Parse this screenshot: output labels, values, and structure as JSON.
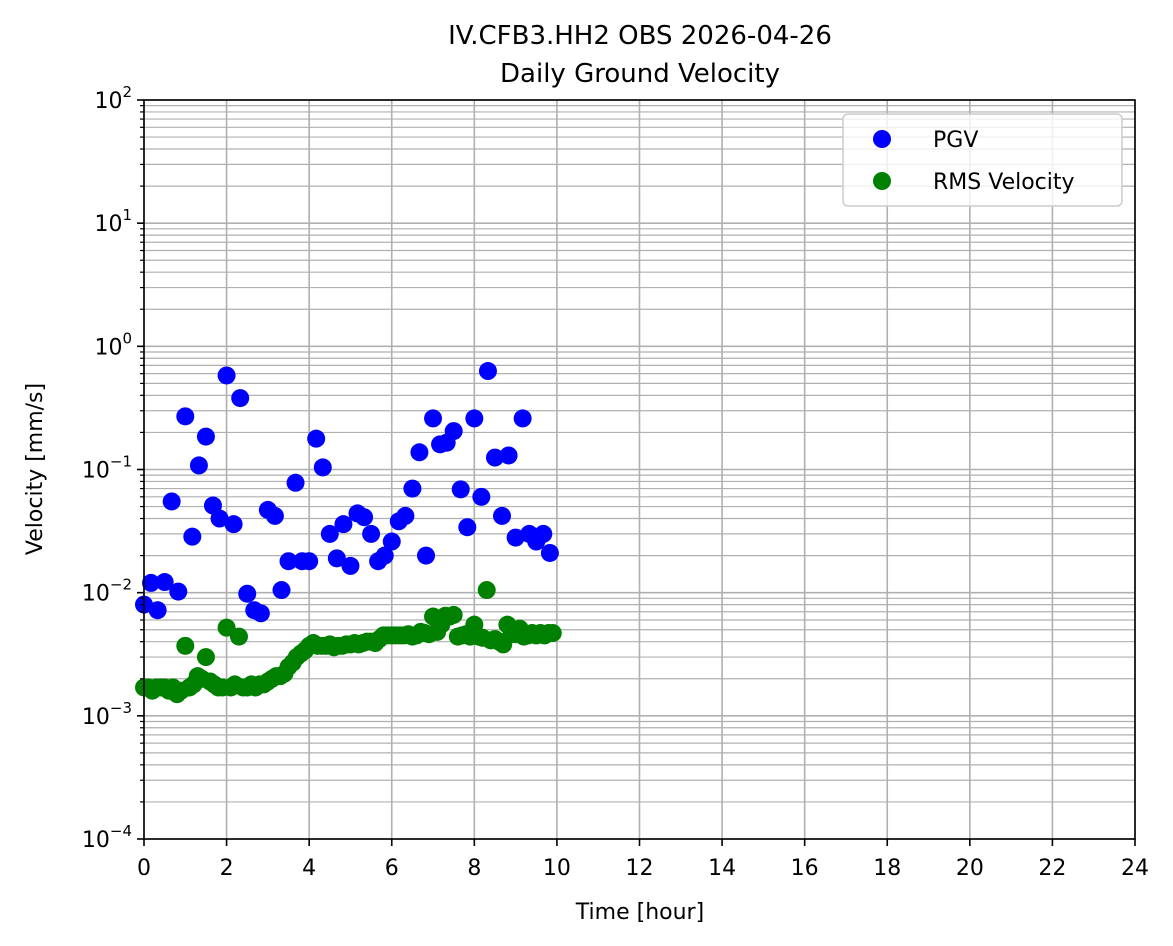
{
  "chart_data": {
    "type": "scatter",
    "title": "IV.CFB3.HH2 OBS 2026-04-26",
    "subtitle": "Daily Ground Velocity",
    "xlabel": "Time [hour]",
    "ylabel": "Velocity [mm/s]",
    "xlim": [
      0,
      24
    ],
    "ylim": [
      0.0001,
      100
    ],
    "yscale": "log",
    "grid": true,
    "legend_position": "top-right",
    "x_ticks": [
      "0",
      "2",
      "4",
      "6",
      "8",
      "10",
      "12",
      "14",
      "16",
      "18",
      "20",
      "22",
      "24"
    ],
    "y_ticks": [
      {
        "base": "10",
        "exp": "−4"
      },
      {
        "base": "10",
        "exp": "−3"
      },
      {
        "base": "10",
        "exp": "−2"
      },
      {
        "base": "10",
        "exp": "−1"
      },
      {
        "base": "10",
        "exp": "0"
      },
      {
        "base": "10",
        "exp": "1"
      },
      {
        "base": "10",
        "exp": "2"
      }
    ],
    "series": [
      {
        "name": "PGV",
        "color": "#0000ff",
        "x": [
          0.0,
          0.17,
          0.33,
          0.5,
          0.67,
          0.83,
          1.0,
          1.17,
          1.33,
          1.5,
          1.67,
          1.83,
          2.0,
          2.17,
          2.33,
          2.5,
          2.67,
          2.83,
          3.0,
          3.17,
          3.33,
          3.5,
          3.67,
          3.83,
          4.0,
          4.17,
          4.33,
          4.5,
          4.67,
          4.83,
          5.0,
          5.17,
          5.33,
          5.5,
          5.67,
          5.83,
          6.0,
          6.17,
          6.33,
          6.5,
          6.67,
          6.83,
          7.0,
          7.17,
          7.33,
          7.5,
          7.67,
          7.83,
          8.0,
          8.17,
          8.33,
          8.5,
          8.67,
          8.83,
          9.0,
          9.17,
          9.33,
          9.5,
          9.67,
          9.83
        ],
        "y": [
          0.008,
          0.012,
          0.0072,
          0.0122,
          0.055,
          0.0102,
          0.27,
          0.0285,
          0.108,
          0.185,
          0.051,
          0.04,
          0.58,
          0.036,
          0.38,
          0.0098,
          0.0072,
          0.0068,
          0.047,
          0.042,
          0.0105,
          0.018,
          0.078,
          0.018,
          0.018,
          0.178,
          0.104,
          0.03,
          0.019,
          0.036,
          0.0165,
          0.044,
          0.041,
          0.03,
          0.018,
          0.02,
          0.026,
          0.038,
          0.042,
          0.07,
          0.138,
          0.02,
          0.26,
          0.16,
          0.165,
          0.205,
          0.069,
          0.034,
          0.26,
          0.06,
          0.63,
          0.125,
          0.042,
          0.13,
          0.028,
          0.26,
          0.03,
          0.026,
          0.03,
          0.021
        ]
      },
      {
        "name": "RMS Velocity",
        "color": "#008000",
        "x": [
          0.0,
          0.1,
          0.2,
          0.3,
          0.4,
          0.5,
          0.6,
          0.7,
          0.8,
          0.9,
          1.0,
          1.1,
          1.2,
          1.3,
          1.4,
          1.5,
          1.6,
          1.7,
          1.8,
          1.9,
          2.0,
          2.1,
          2.2,
          2.3,
          2.4,
          2.5,
          2.6,
          2.7,
          2.8,
          2.9,
          3.0,
          3.1,
          3.2,
          3.3,
          3.4,
          3.5,
          3.6,
          3.7,
          3.8,
          3.9,
          4.0,
          4.1,
          4.2,
          4.3,
          4.4,
          4.5,
          4.6,
          4.7,
          4.8,
          4.9,
          5.0,
          5.1,
          5.2,
          5.3,
          5.4,
          5.5,
          5.6,
          5.7,
          5.8,
          5.9,
          6.0,
          6.1,
          6.2,
          6.3,
          6.4,
          6.5,
          6.6,
          6.7,
          6.8,
          6.9,
          7.0,
          7.1,
          7.2,
          7.3,
          7.4,
          7.5,
          7.6,
          7.7,
          7.8,
          7.9,
          8.0,
          8.1,
          8.2,
          8.3,
          8.4,
          8.5,
          8.6,
          8.7,
          8.8,
          8.9,
          9.0,
          9.1,
          9.2,
          9.3,
          9.4,
          9.5,
          9.6,
          9.7,
          9.8,
          9.9
        ],
        "y": [
          0.0017,
          0.0017,
          0.0016,
          0.0017,
          0.0017,
          0.0017,
          0.0016,
          0.0017,
          0.0015,
          0.0016,
          0.0037,
          0.0017,
          0.0018,
          0.0021,
          0.002,
          0.003,
          0.0019,
          0.0018,
          0.0017,
          0.0017,
          0.0052,
          0.0017,
          0.0018,
          0.0044,
          0.0017,
          0.0017,
          0.0018,
          0.0017,
          0.0018,
          0.0018,
          0.0019,
          0.002,
          0.0021,
          0.0021,
          0.0022,
          0.0025,
          0.0027,
          0.003,
          0.0032,
          0.0034,
          0.0037,
          0.0039,
          0.0037,
          0.0037,
          0.0037,
          0.0038,
          0.0036,
          0.0037,
          0.0037,
          0.0038,
          0.0038,
          0.0039,
          0.0038,
          0.0039,
          0.004,
          0.004,
          0.0039,
          0.0042,
          0.0045,
          0.0045,
          0.0045,
          0.0045,
          0.0045,
          0.0045,
          0.0046,
          0.0044,
          0.0045,
          0.0048,
          0.0047,
          0.0046,
          0.0064,
          0.0048,
          0.0055,
          0.0065,
          0.0064,
          0.0066,
          0.0044,
          0.0045,
          0.0046,
          0.0044,
          0.0055,
          0.0044,
          0.0043,
          0.0105,
          0.0041,
          0.0042,
          0.004,
          0.0038,
          0.0055,
          0.0046,
          0.0046,
          0.0051,
          0.0044,
          0.0045,
          0.0047,
          0.0045,
          0.0047,
          0.0045,
          0.0047,
          0.0047
        ]
      }
    ]
  }
}
